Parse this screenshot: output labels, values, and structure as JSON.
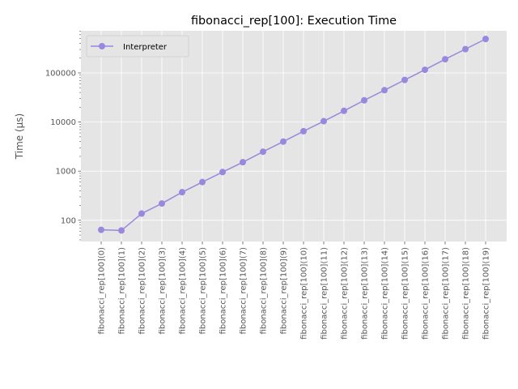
{
  "chart_data": {
    "type": "line",
    "title": "fibonacci_rep[100]: Execution Time",
    "xlabel": "",
    "ylabel": "Time (µs)",
    "yscale": "log",
    "ylim": [
      37,
      720000
    ],
    "yticks": [
      {
        "value": 100,
        "label": "100"
      },
      {
        "value": 1000,
        "label": "1000"
      },
      {
        "value": 10000,
        "label": "10000"
      },
      {
        "value": 100000,
        "label": "100000"
      }
    ],
    "grid": true,
    "legend_position": "top-left",
    "categories": [
      "fibonacci_rep[100](0)",
      "fibonacci_rep[100](1)",
      "fibonacci_rep[100](2)",
      "fibonacci_rep[100](3)",
      "fibonacci_rep[100](4)",
      "fibonacci_rep[100](5)",
      "fibonacci_rep[100](6)",
      "fibonacci_rep[100](7)",
      "fibonacci_rep[100](8)",
      "fibonacci_rep[100](9)",
      "fibonacci_rep[100](10)",
      "fibonacci_rep[100](11)",
      "fibonacci_rep[100](12)",
      "fibonacci_rep[100](13)",
      "fibonacci_rep[100](14)",
      "fibonacci_rep[100](15)",
      "fibonacci_rep[100](16)",
      "fibonacci_rep[100](17)",
      "fibonacci_rep[100](18)",
      "fibonacci_rep[100](19)"
    ],
    "series": [
      {
        "name": "Interpreter",
        "color": "#9988dd",
        "marker": "circle",
        "values": [
          64,
          62,
          137,
          220,
          373,
          600,
          960,
          1520,
          2490,
          4000,
          6500,
          10400,
          16900,
          27700,
          44500,
          72000,
          116000,
          190000,
          305000,
          490000
        ]
      }
    ]
  },
  "colors": {
    "plot_background": "#e5e5e5",
    "grid": "#ffffff",
    "text": "#555555"
  }
}
